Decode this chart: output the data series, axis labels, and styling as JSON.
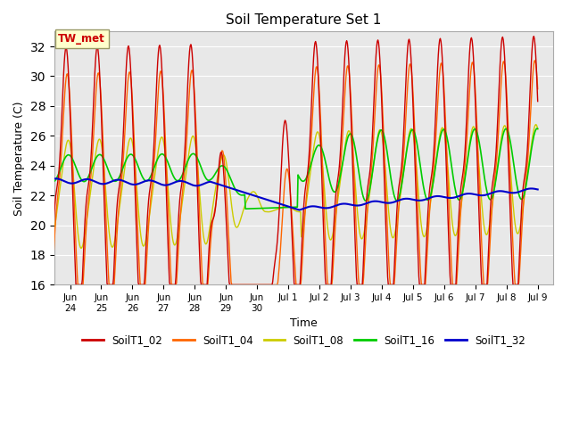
{
  "title": "Soil Temperature Set 1",
  "xlabel": "Time",
  "ylabel": "Soil Temperature (C)",
  "ylim": [
    16,
    33
  ],
  "yticks": [
    16,
    18,
    20,
    22,
    24,
    26,
    28,
    30,
    32
  ],
  "colors": {
    "SoilT1_02": "#cc0000",
    "SoilT1_04": "#ff6600",
    "SoilT1_08": "#cccc00",
    "SoilT1_16": "#00cc00",
    "SoilT1_32": "#0000cc"
  },
  "bg_color": "#e8e8e8",
  "annotation_text": "TW_met",
  "annotation_color": "#cc0000",
  "annotation_bg": "#ffffcc",
  "annotation_border": "#999966"
}
